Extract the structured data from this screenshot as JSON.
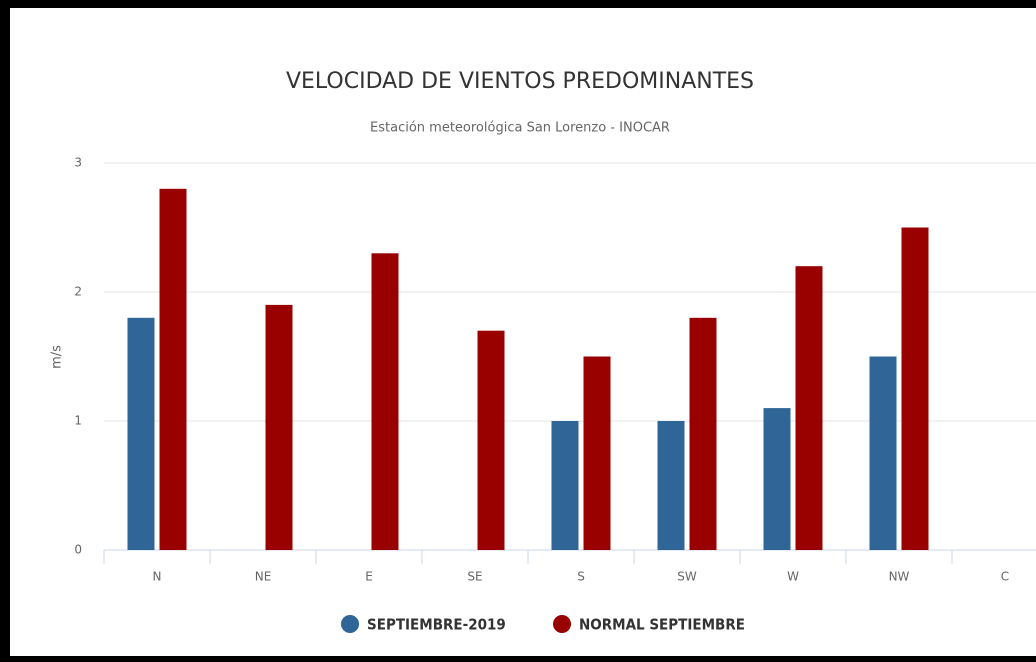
{
  "chart_data": {
    "type": "bar",
    "title": "VELOCIDAD DE VIENTOS PREDOMINANTES",
    "subtitle": "Estación meteorológica San Lorenzo - INOCAR",
    "y_label": "m/s",
    "categories": [
      "N",
      "NE",
      "E",
      "SE",
      "S",
      "SW",
      "W",
      "NW",
      "C"
    ],
    "series": [
      {
        "name": "SEPTIEMBRE-2019",
        "color": "#2f6597",
        "values": [
          1.8,
          null,
          null,
          null,
          1.0,
          1.0,
          1.1,
          1.5,
          null
        ]
      },
      {
        "name": "NORMAL SEPTIEMBRE",
        "color": "#990000",
        "values": [
          2.8,
          1.9,
          2.3,
          1.7,
          1.5,
          1.8,
          2.2,
          2.5,
          null
        ]
      }
    ],
    "ylim": [
      0,
      3
    ],
    "yticks": [
      0,
      1,
      2,
      3
    ],
    "grid": true
  }
}
